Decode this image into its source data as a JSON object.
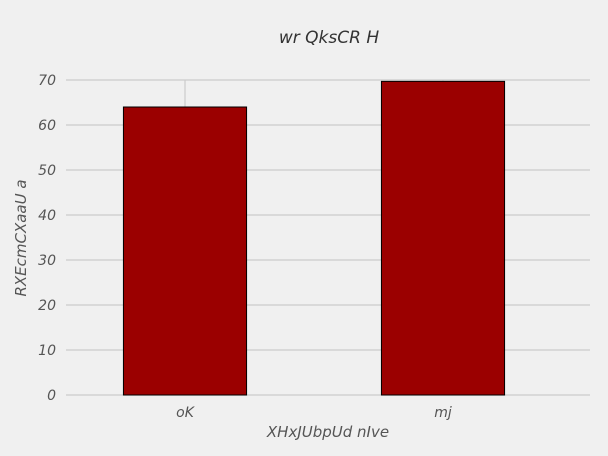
{
  "chart_data": {
    "type": "bar",
    "title": "wr  QksCR H",
    "xlabel": "XHxJUbpUd nIve",
    "ylabel": "RXEcmCXaaU a",
    "categories": [
      "oK",
      "mj"
    ],
    "values": [
      64,
      69.7
    ],
    "ylim": [
      0,
      70
    ],
    "yticks": [
      0,
      10,
      20,
      30,
      40,
      50,
      60,
      70
    ],
    "grid": true,
    "bar_color": "#9b0000",
    "bar_edge_color": "#000000",
    "background": "#f0f0f0",
    "grid_color": "#cbcbcb"
  }
}
